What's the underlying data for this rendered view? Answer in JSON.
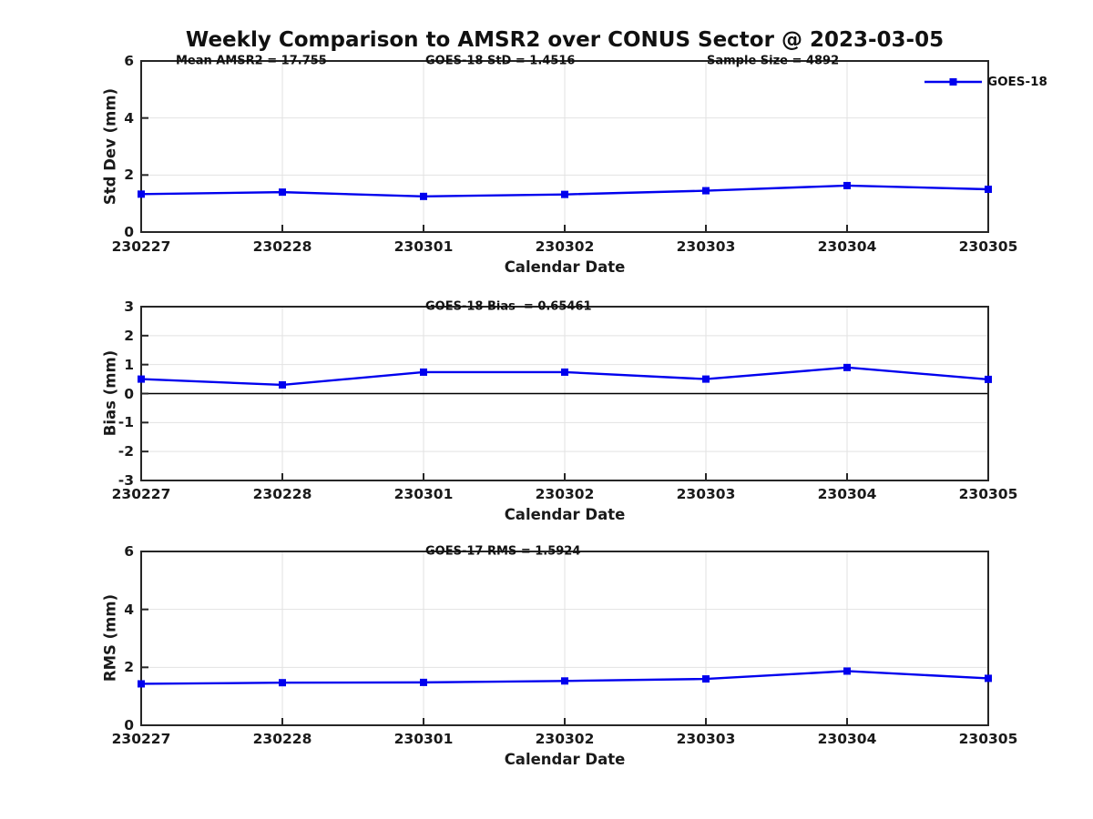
{
  "page": {
    "title": "Weekly Comparison to AMSR2 over CONUS Sector @ 2023-03-05",
    "background": "#ffffff"
  },
  "colors": {
    "line": "#0000EE",
    "grid": "#e2e2e2",
    "frame": "#262626",
    "zero_line": "#000000",
    "text": "#1a1a1a"
  },
  "chart_data": [
    {
      "id": "std_dev",
      "type": "line",
      "annotations": [
        "Mean AMSR2 = 17.755",
        "GOES-18 StD = 1.4516",
        "Sample Size = 4892"
      ],
      "categories": [
        "230227",
        "230228",
        "230301",
        "230302",
        "230303",
        "230304",
        "230305"
      ],
      "series": [
        {
          "name": "GOES-18",
          "color": "#0000EE",
          "marker": "square",
          "values": [
            1.33,
            1.4,
            1.25,
            1.32,
            1.45,
            1.63,
            1.5
          ]
        }
      ],
      "xlabel": "Calendar Date",
      "ylabel": "Std Dev (mm)",
      "ylim": [
        0,
        6
      ],
      "yticks": [
        0,
        2,
        4,
        6
      ],
      "grid": true,
      "legend": {
        "label": "GOES-18",
        "position": "top-right"
      }
    },
    {
      "id": "bias",
      "type": "line",
      "annotations": [
        "GOES-18 Bias  = 0.65461"
      ],
      "categories": [
        "230227",
        "230228",
        "230301",
        "230302",
        "230303",
        "230304",
        "230305"
      ],
      "series": [
        {
          "name": "GOES-18",
          "color": "#0000EE",
          "marker": "square",
          "values": [
            0.5,
            0.3,
            0.74,
            0.74,
            0.5,
            0.9,
            0.49
          ]
        }
      ],
      "xlabel": "Calendar Date",
      "ylabel": "Bias (mm)",
      "ylim": [
        -3,
        3
      ],
      "yticks": [
        -3,
        -2,
        -1,
        0,
        1,
        2,
        3
      ],
      "grid": true,
      "zero_line": true
    },
    {
      "id": "rms",
      "type": "line",
      "annotations": [
        "GOES-17 RMS = 1.5924"
      ],
      "categories": [
        "230227",
        "230228",
        "230301",
        "230302",
        "230303",
        "230304",
        "230305"
      ],
      "series": [
        {
          "name": "GOES-18",
          "color": "#0000EE",
          "marker": "square",
          "values": [
            1.43,
            1.47,
            1.48,
            1.53,
            1.6,
            1.87,
            1.62
          ]
        }
      ],
      "xlabel": "Calendar Date",
      "ylabel": "RMS (mm)",
      "ylim": [
        0,
        6
      ],
      "yticks": [
        0,
        2,
        4,
        6
      ],
      "grid": true
    }
  ]
}
